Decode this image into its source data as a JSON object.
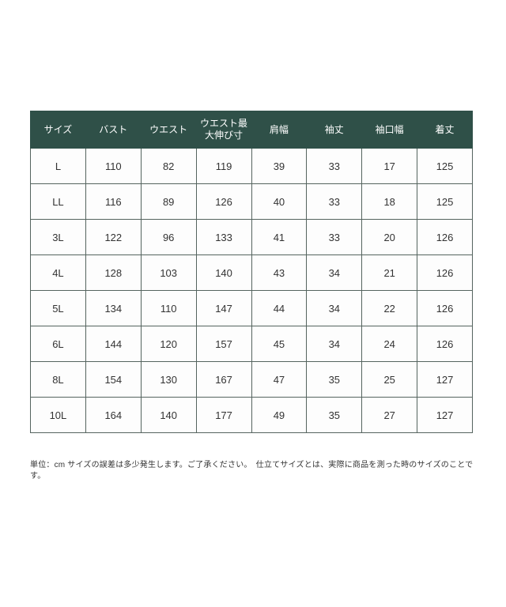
{
  "chart_data": {
    "type": "table",
    "columns": [
      "サイズ",
      "バスト",
      "ウエスト",
      "ウエスト最大伸び寸",
      "肩幅",
      "袖丈",
      "袖口幅",
      "着丈"
    ],
    "rows": [
      [
        "L",
        "110",
        "82",
        "119",
        "39",
        "33",
        "17",
        "125"
      ],
      [
        "LL",
        "116",
        "89",
        "126",
        "40",
        "33",
        "18",
        "125"
      ],
      [
        "3L",
        "122",
        "96",
        "133",
        "41",
        "33",
        "20",
        "126"
      ],
      [
        "4L",
        "128",
        "103",
        "140",
        "43",
        "34",
        "21",
        "126"
      ],
      [
        "5L",
        "134",
        "110",
        "147",
        "44",
        "34",
        "22",
        "126"
      ],
      [
        "6L",
        "144",
        "120",
        "157",
        "45",
        "34",
        "24",
        "126"
      ],
      [
        "8L",
        "154",
        "130",
        "167",
        "47",
        "35",
        "25",
        "127"
      ],
      [
        "10L",
        "164",
        "140",
        "177",
        "49",
        "35",
        "27",
        "127"
      ]
    ],
    "unit": "cm",
    "layout_hints": {
      "header_position": "top",
      "grid": "on",
      "columns_equal_width": true
    }
  },
  "footnote": {
    "text": "単位：cm サイズの誤差は多少発生します。ご了承ください。　仕立てサイズとは、実際に商品を測った時のサイズのことです。"
  },
  "colors": {
    "header_bg": "#2f5048",
    "header_text": "#ffffff",
    "body_text": "#333333",
    "grid_border": "#55645f",
    "page_bg": "#ffffff"
  }
}
